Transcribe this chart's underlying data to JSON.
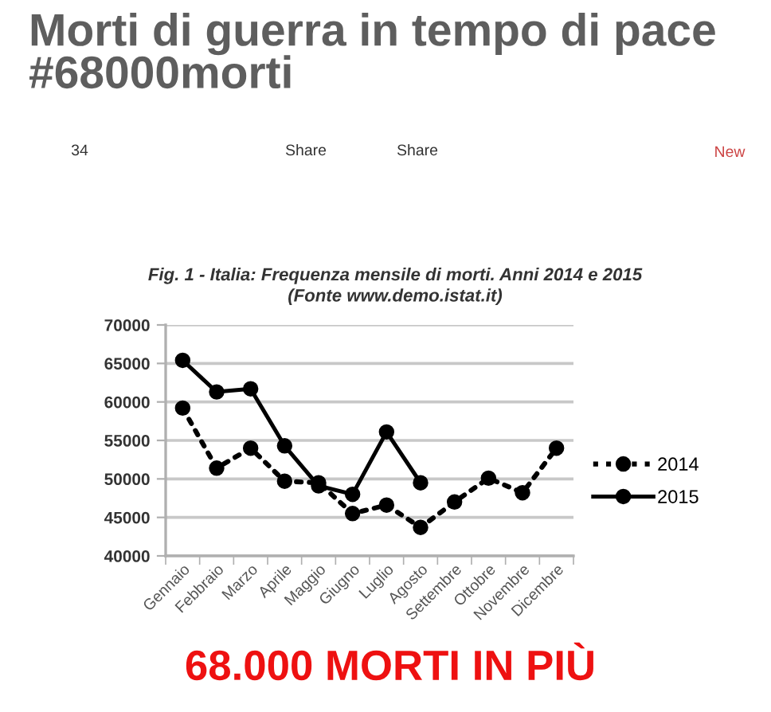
{
  "chart_data": {
    "type": "line",
    "title": "Morti di guerra in tempo di pace #68000morti",
    "subtitle": "Fig. 1 - Italia: Frequenza mensile di morti. Anni 2014 e 2015\n(Fonte www.demo.istat.it)",
    "annotations": [
      "34",
      "Share",
      "Share",
      "New",
      "68.000 MORTI IN PIÙ"
    ],
    "categories": [
      "Gennaio",
      "Febbraio",
      "Marzo",
      "Aprile",
      "Maggio",
      "Giugno",
      "Luglio",
      "Agosto",
      "Settembre",
      "Ottobre",
      "Novembre",
      "Dicembre"
    ],
    "series": [
      {
        "name": "2014",
        "color": "#000000",
        "line_style": "dotted",
        "values": [
          59200,
          51400,
          54000,
          49700,
          49500,
          45500,
          46600,
          43700,
          47000,
          50100,
          48200,
          54000
        ]
      },
      {
        "name": "2015",
        "color": "#000000",
        "line_style": "solid",
        "values": [
          65400,
          61300,
          61700,
          54300,
          49100,
          48000,
          56100,
          49500,
          null,
          null,
          null,
          null
        ]
      }
    ],
    "ylim": [
      40000,
      70000
    ],
    "yticks": [
      40000,
      45000,
      50000,
      55000,
      60000,
      65000,
      70000
    ],
    "grid": "y",
    "legend": "right",
    "marker": "circle"
  }
}
